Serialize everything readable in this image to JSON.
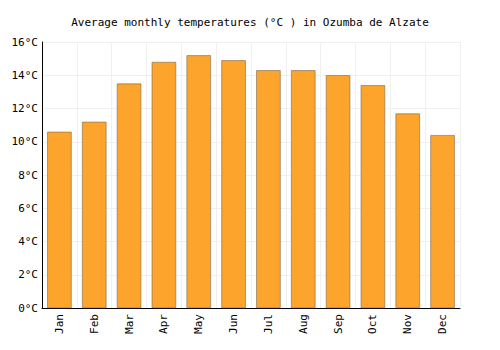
{
  "chart_data": {
    "type": "bar",
    "title": "Average monthly temperatures (°C ) in Ozumba de Alzate",
    "categories": [
      "Jan",
      "Feb",
      "Mar",
      "Apr",
      "May",
      "Jun",
      "Jul",
      "Aug",
      "Sep",
      "Oct",
      "Nov",
      "Dec"
    ],
    "values": [
      10.6,
      11.2,
      13.5,
      14.8,
      15.2,
      14.9,
      14.3,
      14.3,
      14.0,
      13.4,
      11.7,
      10.4
    ],
    "color": "#fca42c",
    "ylim": [
      0,
      16
    ],
    "yticks": [
      {
        "value": 0,
        "label": "0°C"
      },
      {
        "value": 2,
        "label": "2°C"
      },
      {
        "value": 4,
        "label": "4°C"
      },
      {
        "value": 6,
        "label": "6°C"
      },
      {
        "value": 8,
        "label": "8°C"
      },
      {
        "value": 10,
        "label": "10°C"
      },
      {
        "value": 12,
        "label": "12°C"
      },
      {
        "value": 14,
        "label": "14°C"
      },
      {
        "value": 16,
        "label": "16°C"
      }
    ],
    "grid": true
  }
}
